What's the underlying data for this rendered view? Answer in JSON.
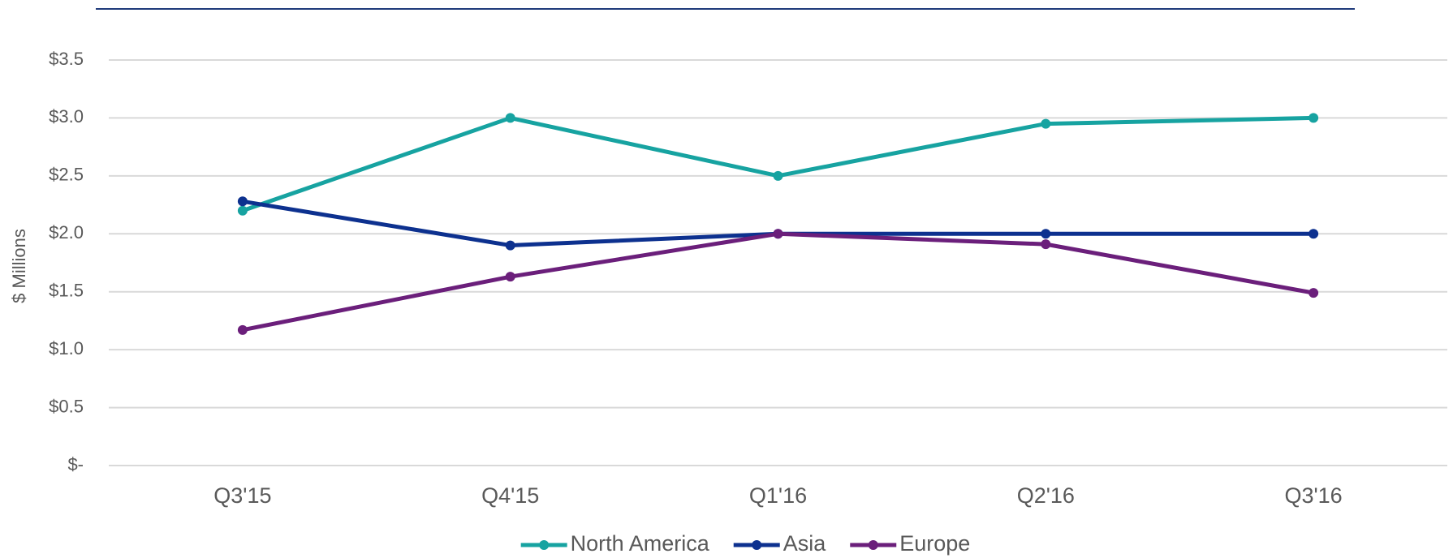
{
  "chart_data": {
    "type": "line",
    "y_label": "$ Millions",
    "categories": [
      "Q3'15",
      "Q4'15",
      "Q1'16",
      "Q2'16",
      "Q3'16"
    ],
    "series": [
      {
        "name": "North America",
        "color": "#17a3a1",
        "values": [
          2.2,
          3.0,
          2.5,
          2.95,
          3.0
        ]
      },
      {
        "name": "Asia",
        "color": "#0d318f",
        "values": [
          2.28,
          1.9,
          2.0,
          2.0,
          2.0
        ]
      },
      {
        "name": "Europe",
        "color": "#6b1f7b",
        "values": [
          1.17,
          1.63,
          2.0,
          1.91,
          1.49
        ]
      }
    ],
    "ylim": [
      0,
      3.5
    ],
    "yticks": [
      {
        "value": 0,
        "label": "$-"
      },
      {
        "value": 0.5,
        "label": "$0.5"
      },
      {
        "value": 1,
        "label": "$1.0"
      },
      {
        "value": 1.5,
        "label": "$1.5"
      },
      {
        "value": 2,
        "label": "$2.0"
      },
      {
        "value": 2.5,
        "label": "$2.5"
      },
      {
        "value": 3,
        "label": "$3.0"
      },
      {
        "value": 3.5,
        "label": "$3.5"
      }
    ],
    "grid": true,
    "legend": "bottom"
  }
}
